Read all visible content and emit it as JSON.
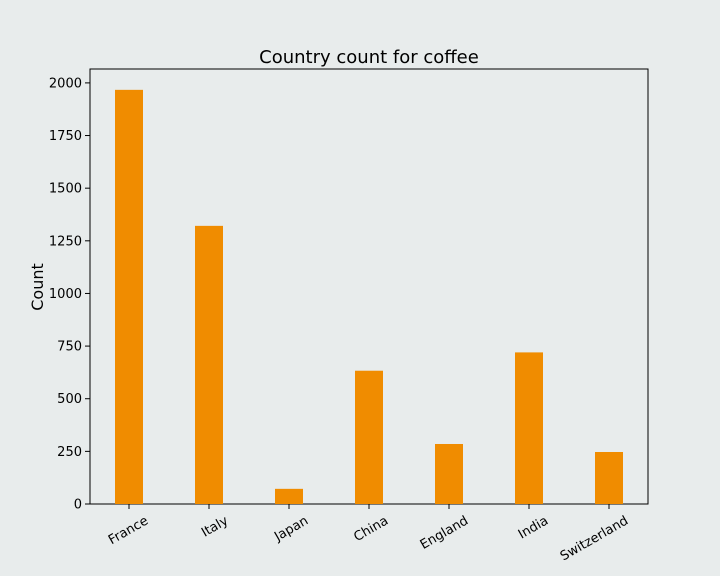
{
  "chart_data": {
    "type": "bar",
    "title": "Country count for coffee",
    "xlabel": "",
    "ylabel": "Count",
    "categories": [
      "France",
      "Italy",
      "Japan",
      "China",
      "England",
      "India",
      "Switzerland"
    ],
    "values": [
      1967,
      1321,
      72,
      633,
      285,
      720,
      247
    ],
    "yticks": [
      0,
      250,
      500,
      750,
      1000,
      1250,
      1500,
      1750,
      2000
    ],
    "ylim": [
      0,
      2066
    ],
    "grid": false,
    "legend": "none",
    "colors": {
      "bar": "#f08c00",
      "background": "#e8ecec",
      "plot_area": "#e8ecec",
      "axis": "#000000"
    }
  }
}
